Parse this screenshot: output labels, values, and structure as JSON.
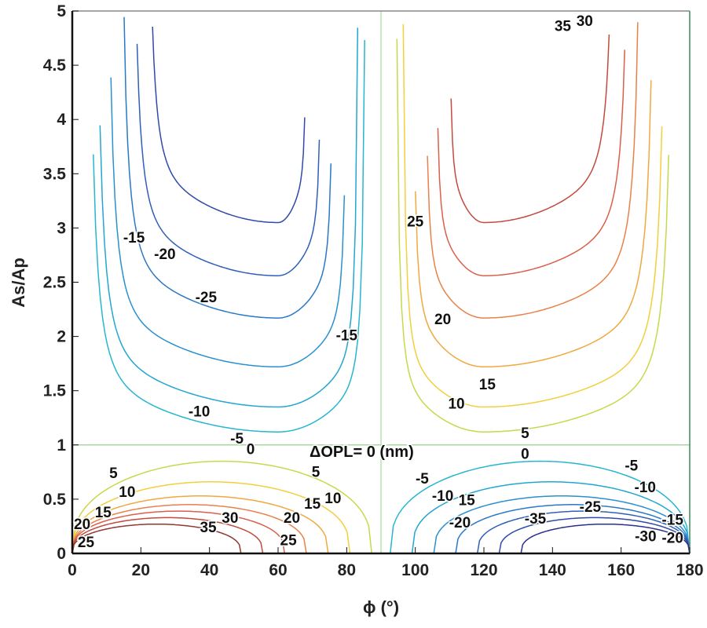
{
  "chart_data": {
    "type": "contour",
    "title": "",
    "xlabel": "ϕ (°)",
    "ylabel": "As/Ap",
    "xlim": [
      0,
      180
    ],
    "ylim": [
      0,
      5
    ],
    "xticks": [
      "0",
      "20",
      "40",
      "60",
      "80",
      "100",
      "120",
      "140",
      "160",
      "180"
    ],
    "yticks": [
      "0",
      "0.5",
      "1",
      "1.5",
      "2",
      "2.5",
      "3",
      "3.5",
      "4",
      "4.5",
      "5"
    ],
    "grid": false,
    "annotation": "ΔOPL= 0 (nm)",
    "zero_contour": {
      "x": 90,
      "y": 1
    },
    "levels": [
      -35,
      -30,
      -25,
      -20,
      -15,
      -10,
      -5,
      0,
      5,
      10,
      15,
      20,
      25,
      30,
      35
    ],
    "colors": {
      "-35": "#2b2f8f",
      "-30": "#2f4aa8",
      "-25": "#2f5fb8",
      "-20": "#2a78c6",
      "-15": "#2a90cf",
      "-10": "#22a6d2",
      "-5": "#27b6cf",
      "0": "#a8d8a0",
      "5": "#c9d84a",
      "10": "#f2cf3c",
      "15": "#f0a840",
      "20": "#e8824a",
      "25": "#d9604a",
      "30": "#c24a3e",
      "35": "#8e3a2e"
    },
    "regions": [
      {
        "name": "upper-left",
        "sign": "negative",
        "phi_center": 60,
        "levels_min_y": {
          "-5": 1.12,
          "-10": 1.35,
          "-15": 1.72,
          "-20": 2.17,
          "-25": 2.56,
          "-30": 3.05
        }
      },
      {
        "name": "upper-right",
        "sign": "positive",
        "phi_center": 120,
        "levels_min_y": {
          "5": 1.12,
          "10": 1.35,
          "15": 1.72,
          "20": 2.17,
          "25": 2.56,
          "30": 3.05
        }
      },
      {
        "name": "lower-left",
        "sign": "positive",
        "phi_center": 40,
        "levels_max_y": {
          "5": 0.85,
          "10": 0.66,
          "15": 0.53,
          "20": 0.45,
          "25": 0.39,
          "30": 0.33,
          "35": 0.27
        }
      },
      {
        "name": "lower-right",
        "sign": "negative",
        "phi_center": 140,
        "levels_max_y": {
          "-5": 0.85,
          "-10": 0.66,
          "-15": 0.53,
          "-20": 0.45,
          "-25": 0.39,
          "-30": 0.33,
          "-35": 0.27
        }
      }
    ],
    "contour_labels": [
      {
        "text": "-15",
        "x": 18,
        "y": 2.9
      },
      {
        "text": "-20",
        "x": 27,
        "y": 2.75
      },
      {
        "text": "-25",
        "x": 39,
        "y": 2.35
      },
      {
        "text": "-15",
        "x": 80,
        "y": 2.0
      },
      {
        "text": "-10",
        "x": 37,
        "y": 1.3
      },
      {
        "text": "-5",
        "x": 48,
        "y": 1.05
      },
      {
        "text": "0",
        "x": 52,
        "y": 0.95
      },
      {
        "text": "25",
        "x": 100,
        "y": 3.05
      },
      {
        "text": "20",
        "x": 108,
        "y": 2.15
      },
      {
        "text": "15",
        "x": 121,
        "y": 1.55
      },
      {
        "text": "10",
        "x": 112,
        "y": 1.37
      },
      {
        "text": "5",
        "x": 132,
        "y": 1.1
      },
      {
        "text": "0",
        "x": 132,
        "y": 0.95
      },
      {
        "text": "35",
        "x": 143,
        "y": 4.85
      },
      {
        "text": "30",
        "x": 148,
        "y": 4.9
      },
      {
        "text": "5",
        "x": 12,
        "y": 0.73
      },
      {
        "text": "10",
        "x": 16,
        "y": 0.6
      },
      {
        "text": "15",
        "x": 9,
        "y": 0.37
      },
      {
        "text": "20",
        "x": 4,
        "y": 0.26
      },
      {
        "text": "25",
        "x": 4,
        "y": 0.18
      },
      {
        "text": "5",
        "x": 71,
        "y": 0.74
      },
      {
        "text": "10",
        "x": 76,
        "y": 0.5
      },
      {
        "text": "15",
        "x": 70,
        "y": 0.45
      },
      {
        "text": "20",
        "x": 64,
        "y": 0.32
      },
      {
        "text": "25",
        "x": 63,
        "y": 0.2
      },
      {
        "text": "30",
        "x": 46,
        "y": 0.32
      },
      {
        "text": "35",
        "x": 41,
        "y": 0.23
      },
      {
        "text": "-5",
        "x": 102,
        "y": 0.68
      },
      {
        "text": "-10",
        "x": 108,
        "y": 0.52
      },
      {
        "text": "15",
        "x": 115,
        "y": 0.48
      },
      {
        "text": "-20",
        "x": 113,
        "y": 0.32
      },
      {
        "text": "-35",
        "x": 135,
        "y": 0.31
      },
      {
        "text": "-25",
        "x": 151,
        "y": 0.42
      },
      {
        "text": "-5",
        "x": 163,
        "y": 0.8
      },
      {
        "text": "-10",
        "x": 167,
        "y": 0.6
      },
      {
        "text": "-15",
        "x": 175,
        "y": 0.3
      },
      {
        "text": "-20",
        "x": 175,
        "y": 0.22
      },
      {
        "text": "-30",
        "x": 174,
        "y": 0.15
      }
    ]
  }
}
